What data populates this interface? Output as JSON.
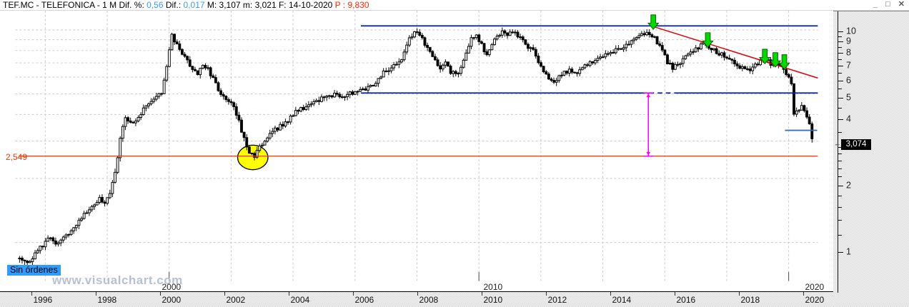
{
  "header": {
    "segments": [
      {
        "label": "TEF.MC - TELEFONICA - ",
        "color": "#000000"
      },
      {
        "label": " 1 M ",
        "color": "#000000"
      },
      {
        "label": " Dif. %: ",
        "color": "#000000"
      },
      {
        "label": "0,56",
        "color": "#3b9cf5"
      },
      {
        "label": "  Dif.: ",
        "color": "#000000"
      },
      {
        "label": "0,017",
        "color": "#3b9cf5"
      },
      {
        "label": "  M: 3,107 ",
        "color": "#000000"
      },
      {
        "label": " m: 3,021 ",
        "color": "#000000"
      },
      {
        "label": " F: 14-10-2020 ",
        "color": "#000000"
      },
      {
        "label": " P : 9,830",
        "color": "#ff2400"
      }
    ]
  },
  "window_controls": {
    "minimize": "_",
    "maximize": "□",
    "close": "✕"
  },
  "status_label": "Sin órdenes",
  "watermark": "www.visualchart.com",
  "current_price_label": "3,074",
  "current_price_arrow": "←",
  "alert_level_label": "2,549",
  "price_axis": {
    "major_ticks": [
      {
        "value": 10,
        "label": "10"
      },
      {
        "value": 9,
        "label": "9"
      },
      {
        "value": 8,
        "label": "8"
      },
      {
        "value": 7,
        "label": "7"
      },
      {
        "value": 6,
        "label": "6"
      },
      {
        "value": 5,
        "label": "5"
      },
      {
        "value": 4,
        "label": "4"
      },
      {
        "value": 3,
        "label": "3"
      },
      {
        "value": 2,
        "label": "2"
      },
      {
        "value": 1,
        "label": "1"
      }
    ],
    "minor_ticks": [
      9.5,
      8.5,
      7.5,
      6.5,
      5.5,
      4.5,
      3.5,
      2.8,
      2.6,
      2.4,
      2.2,
      1.8,
      1.6,
      1.4,
      1.2
    ]
  },
  "time_axis": {
    "year_labels": [
      1996,
      1998,
      2000,
      2002,
      2004,
      2006,
      2008,
      2010,
      2012,
      2014,
      2016,
      2018,
      2020
    ],
    "decade_labels": [
      {
        "year": 2000,
        "label": "2000"
      },
      {
        "year": 2010,
        "label": "2010"
      },
      {
        "year": 2020,
        "label": "2020"
      }
    ]
  },
  "chart_data": {
    "type": "candlestick",
    "symbol": "TEF.MC",
    "name": "TELEFONICA",
    "timeframe": "1 M",
    "last_date": "14-10-2020",
    "last_close": 3.074,
    "scale": "logarithmic",
    "x_range": [
      1995.17,
      2020.83
    ],
    "y_gridlines": [
      1,
      2,
      3,
      4,
      5,
      6,
      7,
      8,
      9,
      10
    ],
    "x_gridline_years": [
      1996,
      1998,
      2000,
      2002,
      2004,
      2006,
      2008,
      2010,
      2012,
      2014,
      2016,
      2018,
      2020
    ],
    "monthly_close_anchors": [
      [
        1995.17,
        0.84
      ],
      [
        1995.33,
        0.8
      ],
      [
        1995.5,
        0.83
      ],
      [
        1995.67,
        0.88
      ],
      [
        1995.83,
        0.94
      ],
      [
        1996.0,
        1.0
      ],
      [
        1996.17,
        1.06
      ],
      [
        1996.33,
        0.99
      ],
      [
        1996.5,
        1.03
      ],
      [
        1996.67,
        1.08
      ],
      [
        1996.83,
        1.13
      ],
      [
        1997.0,
        1.22
      ],
      [
        1997.25,
        1.36
      ],
      [
        1997.5,
        1.48
      ],
      [
        1997.75,
        1.6
      ],
      [
        1997.92,
        1.55
      ],
      [
        1998.08,
        1.72
      ],
      [
        1998.25,
        2.1
      ],
      [
        1998.42,
        3.05
      ],
      [
        1998.58,
        3.9
      ],
      [
        1998.75,
        3.6
      ],
      [
        1998.92,
        3.8
      ],
      [
        1999.08,
        4.05
      ],
      [
        1999.25,
        4.35
      ],
      [
        1999.42,
        4.7
      ],
      [
        1999.58,
        4.85
      ],
      [
        1999.75,
        4.95
      ],
      [
        1999.92,
        6.6
      ],
      [
        2000.08,
        9.4
      ],
      [
        2000.25,
        8.5
      ],
      [
        2000.42,
        7.8
      ],
      [
        2000.58,
        7.2
      ],
      [
        2000.75,
        6.6
      ],
      [
        2000.92,
        6.3
      ],
      [
        2001.08,
        6.9
      ],
      [
        2001.25,
        6.5
      ],
      [
        2001.42,
        5.9
      ],
      [
        2001.58,
        5.3
      ],
      [
        2001.75,
        4.8
      ],
      [
        2001.92,
        4.6
      ],
      [
        2002.08,
        4.3
      ],
      [
        2002.25,
        3.7
      ],
      [
        2002.42,
        3.1
      ],
      [
        2002.58,
        2.7
      ],
      [
        2002.75,
        2.55
      ],
      [
        2002.92,
        2.8
      ],
      [
        2003.08,
        3.05
      ],
      [
        2003.25,
        3.25
      ],
      [
        2003.5,
        3.45
      ],
      [
        2003.75,
        3.65
      ],
      [
        2003.92,
        3.9
      ],
      [
        2004.08,
        4.1
      ],
      [
        2004.33,
        4.3
      ],
      [
        2004.58,
        4.45
      ],
      [
        2004.83,
        4.65
      ],
      [
        2005.08,
        4.85
      ],
      [
        2005.33,
        5.0
      ],
      [
        2005.58,
        4.9
      ],
      [
        2005.83,
        5.0
      ],
      [
        2006.08,
        5.15
      ],
      [
        2006.33,
        5.3
      ],
      [
        2006.58,
        5.55
      ],
      [
        2006.83,
        6.1
      ],
      [
        2007.0,
        6.4
      ],
      [
        2007.25,
        6.75
      ],
      [
        2007.5,
        7.3
      ],
      [
        2007.75,
        9.0
      ],
      [
        2007.92,
        9.9
      ],
      [
        2008.08,
        9.4
      ],
      [
        2008.25,
        8.7
      ],
      [
        2008.42,
        8.0
      ],
      [
        2008.58,
        7.4
      ],
      [
        2008.75,
        6.5
      ],
      [
        2008.92,
        7.0
      ],
      [
        2009.08,
        6.4
      ],
      [
        2009.25,
        6.1
      ],
      [
        2009.42,
        6.6
      ],
      [
        2009.58,
        7.8
      ],
      [
        2009.75,
        9.0
      ],
      [
        2009.92,
        9.5
      ],
      [
        2010.08,
        8.5
      ],
      [
        2010.25,
        7.6
      ],
      [
        2010.42,
        8.5
      ],
      [
        2010.58,
        9.4
      ],
      [
        2010.75,
        9.8
      ],
      [
        2010.92,
        9.6
      ],
      [
        2011.08,
        9.9
      ],
      [
        2011.25,
        9.4
      ],
      [
        2011.42,
        8.8
      ],
      [
        2011.58,
        8.4
      ],
      [
        2011.75,
        8.0
      ],
      [
        2011.92,
        7.2
      ],
      [
        2012.08,
        6.5
      ],
      [
        2012.25,
        6.0
      ],
      [
        2012.42,
        5.7
      ],
      [
        2012.58,
        6.0
      ],
      [
        2012.75,
        6.3
      ],
      [
        2012.92,
        6.5
      ],
      [
        2013.08,
        6.25
      ],
      [
        2013.25,
        6.5
      ],
      [
        2013.5,
        6.9
      ],
      [
        2013.75,
        7.3
      ],
      [
        2013.92,
        7.5
      ],
      [
        2014.08,
        7.7
      ],
      [
        2014.33,
        7.95
      ],
      [
        2014.58,
        8.15
      ],
      [
        2014.83,
        8.5
      ],
      [
        2015.08,
        9.1
      ],
      [
        2015.25,
        9.4
      ],
      [
        2015.42,
        9.9
      ],
      [
        2015.58,
        9.5
      ],
      [
        2015.75,
        8.8
      ],
      [
        2015.92,
        8.0
      ],
      [
        2016.08,
        7.1
      ],
      [
        2016.25,
        6.6
      ],
      [
        2016.42,
        6.9
      ],
      [
        2016.58,
        7.2
      ],
      [
        2016.75,
        7.6
      ],
      [
        2016.92,
        7.9
      ],
      [
        2017.08,
        8.3
      ],
      [
        2017.25,
        8.55
      ],
      [
        2017.42,
        8.3
      ],
      [
        2017.58,
        8.1
      ],
      [
        2017.75,
        7.8
      ],
      [
        2017.92,
        7.5
      ],
      [
        2018.08,
        7.2
      ],
      [
        2018.25,
        6.9
      ],
      [
        2018.42,
        6.7
      ],
      [
        2018.58,
        6.6
      ],
      [
        2018.75,
        6.55
      ],
      [
        2018.92,
        6.8
      ],
      [
        2019.08,
        7.1
      ],
      [
        2019.25,
        7.25
      ],
      [
        2019.42,
        6.9
      ],
      [
        2019.58,
        7.1
      ],
      [
        2019.75,
        6.8
      ],
      [
        2019.92,
        6.3
      ],
      [
        2020.08,
        5.8
      ],
      [
        2020.17,
        4.0
      ],
      [
        2020.33,
        4.2
      ],
      [
        2020.42,
        4.35
      ],
      [
        2020.58,
        3.95
      ],
      [
        2020.67,
        3.6
      ],
      [
        2020.75,
        3.35
      ],
      [
        2020.83,
        3.074
      ]
    ],
    "annotations": {
      "resistance_upper": {
        "value": 10.45,
        "from": 2006.19,
        "to": 2020.94,
        "color": "#0022cc"
      },
      "support_mid": {
        "value": 5.05,
        "from": 2006.19,
        "to": 2020.94,
        "color": "#0022cc",
        "dash_gap": [
          2015.5,
          2016.35
        ]
      },
      "alert_line": {
        "value": 2.549,
        "from": 1995.14,
        "to": 2020.94,
        "color": "#ff3300",
        "label": "2,549"
      },
      "trendline": {
        "from_t": 2015.63,
        "from_v": 10.38,
        "to_t": 2020.94,
        "to_v": 5.94,
        "color": "#dd0000"
      },
      "support_short": {
        "value": 3.37,
        "from": 2019.88,
        "to": 2020.92,
        "color": "#3070c0"
      },
      "measure_line": {
        "t": 2015.47,
        "from_v": 5.05,
        "to_v": 2.549,
        "color": "#ff00ff"
      },
      "ellipse_highlight": {
        "t_range": [
          2002.21,
          2003.19
        ],
        "v_range": [
          2.2,
          2.87
        ],
        "fill": "#ffff00",
        "stroke": "#000000"
      },
      "sell_arrows": [
        {
          "t": 2015.63,
          "tip_v": 10.07
        },
        {
          "t": 2017.39,
          "tip_v": 8.3
        },
        {
          "t": 2019.23,
          "tip_v": 6.94
        },
        {
          "t": 2019.57,
          "tip_v": 6.69
        },
        {
          "t": 2019.86,
          "tip_v": 6.54
        }
      ],
      "arrow_fill": "#00d800",
      "arrow_stroke": "#005e00"
    }
  }
}
